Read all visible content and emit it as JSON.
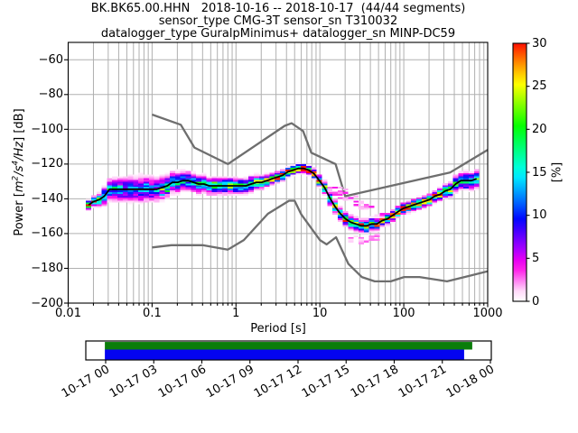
{
  "title": {
    "line1": "BK.BK65.00.HHN   2018-10-16 -- 2018-10-17  (44/44 segments)",
    "line2": "sensor_type CMG-3T sensor_sn T310032",
    "line3": "datalogger_type GuralpMinimus+ datalogger_sn MINP-DC59"
  },
  "axes": {
    "xlabel": "Period [s]",
    "ylabel_prefix": "Power [",
    "ylabel_math_m": "m",
    "ylabel_sup2": "2",
    "ylabel_math_s": "/s",
    "ylabel_sup4": "4",
    "ylabel_math_hz": "/Hz",
    "ylabel_suffix": "] [dB]",
    "x_ticks": [
      "0.01",
      "0.1",
      "1",
      "10",
      "100",
      "1000"
    ],
    "y_ticks": [
      "−60",
      "−80",
      "−100",
      "−120",
      "−140",
      "−160",
      "−180",
      "−200"
    ]
  },
  "colorbar": {
    "label": "[%]",
    "ticks": [
      "0",
      "5",
      "10",
      "15",
      "20",
      "25",
      "30"
    ],
    "min": 0,
    "max": 30,
    "stops": [
      [
        0.0,
        "#ffffff"
      ],
      [
        0.04,
        "#ffd9f9"
      ],
      [
        0.08,
        "#ff80f2"
      ],
      [
        0.12,
        "#ff26e9"
      ],
      [
        0.16,
        "#e600f2"
      ],
      [
        0.2,
        "#aa00ff"
      ],
      [
        0.24,
        "#7300ff"
      ],
      [
        0.28,
        "#3a00ff"
      ],
      [
        0.32,
        "#0008ff"
      ],
      [
        0.36,
        "#0044ff"
      ],
      [
        0.4,
        "#007eff"
      ],
      [
        0.44,
        "#00b4ff"
      ],
      [
        0.48,
        "#00e8ff"
      ],
      [
        0.52,
        "#00ffd9"
      ],
      [
        0.56,
        "#00ffa4"
      ],
      [
        0.6,
        "#00ff6e"
      ],
      [
        0.64,
        "#00ff39"
      ],
      [
        0.68,
        "#06ff00"
      ],
      [
        0.72,
        "#44ff00"
      ],
      [
        0.76,
        "#80ff00"
      ],
      [
        0.8,
        "#bfff00"
      ],
      [
        0.84,
        "#fdff00"
      ],
      [
        0.88,
        "#ffcc00"
      ],
      [
        0.92,
        "#ff9100"
      ],
      [
        0.96,
        "#ff5100"
      ],
      [
        1.0,
        "#ff0e00"
      ]
    ]
  },
  "colors": {
    "grid": "#b0b0b0",
    "frame": "#000000",
    "noise_model": "#6e6e6e",
    "mode_line": "#000000",
    "timeline_green": "#0a7d0a",
    "timeline_blue": "#0404f0"
  },
  "chart_data": {
    "type": "heatmap",
    "title": "BK.BK65.00.HHN 2018-10-16 -- 2018-10-17 (44/44 segments)",
    "xlabel": "Period [s]",
    "ylabel": "Power [m2/s4/Hz] [dB]",
    "xscale": "log",
    "xlim": [
      0.01,
      1000
    ],
    "ylim": [
      -200,
      -50
    ],
    "grid": true,
    "value_unit": "%",
    "value_range": [
      0,
      30
    ],
    "histogram": {
      "bins_per_decade": 16,
      "db_bin_width": 1,
      "period_start": 0.0175,
      "period_end": 820
    },
    "noise_model_nhnm": [
      [
        0.1,
        -91.5
      ],
      [
        0.22,
        -97.4
      ],
      [
        0.32,
        -110.5
      ],
      [
        0.8,
        -120.0
      ],
      [
        3.8,
        -98.0
      ],
      [
        4.6,
        -96.5
      ],
      [
        6.3,
        -101.0
      ],
      [
        7.9,
        -113.5
      ],
      [
        15.4,
        -120.0
      ],
      [
        20.0,
        -138.5
      ],
      [
        354.8,
        -124.9
      ],
      [
        1000,
        -111.8
      ]
    ],
    "noise_model_nlnm": [
      [
        0.1,
        -168.0
      ],
      [
        0.17,
        -166.7
      ],
      [
        0.4,
        -166.7
      ],
      [
        0.8,
        -169.2
      ],
      [
        1.24,
        -163.7
      ],
      [
        2.4,
        -148.6
      ],
      [
        4.3,
        -141.1
      ],
      [
        5.0,
        -141.1
      ],
      [
        6.0,
        -149.0
      ],
      [
        10.0,
        -163.7
      ],
      [
        12.0,
        -166.2
      ],
      [
        15.6,
        -162.1
      ],
      [
        21.9,
        -177.5
      ],
      [
        31.6,
        -185.0
      ],
      [
        45.0,
        -187.5
      ],
      [
        70.0,
        -187.5
      ],
      [
        101.0,
        -185.0
      ],
      [
        154.0,
        -185.0
      ],
      [
        328.0,
        -187.5
      ],
      [
        600.0,
        -184.4
      ],
      [
        1000,
        -181.7
      ]
    ],
    "mode_line": [
      [
        0.017,
        -143.5
      ],
      [
        0.019,
        -142.5
      ],
      [
        0.021,
        -141.5
      ],
      [
        0.024,
        -140.5
      ],
      [
        0.027,
        -138.5
      ],
      [
        0.03,
        -135.2
      ],
      [
        0.034,
        -134.2
      ],
      [
        0.04,
        -134.5
      ],
      [
        0.048,
        -134.4
      ],
      [
        0.057,
        -134.9
      ],
      [
        0.068,
        -134.7
      ],
      [
        0.08,
        -134.9
      ],
      [
        0.095,
        -134.6
      ],
      [
        0.113,
        -134.1
      ],
      [
        0.135,
        -133.0
      ],
      [
        0.16,
        -131.6
      ],
      [
        0.19,
        -130.4
      ],
      [
        0.225,
        -129.8
      ],
      [
        0.267,
        -129.7
      ],
      [
        0.317,
        -130.6
      ],
      [
        0.376,
        -131.5
      ],
      [
        0.447,
        -132.0
      ],
      [
        0.53,
        -132.2
      ],
      [
        0.63,
        -132.4
      ],
      [
        0.748,
        -132.6
      ],
      [
        0.888,
        -132.5
      ],
      [
        1.054,
        -132.3
      ],
      [
        1.251,
        -132.5
      ],
      [
        1.485,
        -131.9
      ],
      [
        1.763,
        -130.9
      ],
      [
        2.093,
        -129.9
      ],
      [
        2.484,
        -128.9
      ],
      [
        2.949,
        -127.9
      ],
      [
        3.501,
        -126.3
      ],
      [
        4.156,
        -124.6
      ],
      [
        4.933,
        -123.1
      ],
      [
        5.856,
        -122.3
      ],
      [
        6.951,
        -122.3
      ],
      [
        8.251,
        -124.6
      ],
      [
        9.795,
        -129.0
      ],
      [
        11.63,
        -134.5
      ],
      [
        13.8,
        -141.0
      ],
      [
        16.38,
        -146.5
      ],
      [
        19.45,
        -150.5
      ],
      [
        23.09,
        -153.0
      ],
      [
        27.41,
        -154.6
      ],
      [
        32.54,
        -155.3
      ],
      [
        38.62,
        -155.3
      ],
      [
        45.85,
        -154.5
      ],
      [
        54.42,
        -153.0
      ],
      [
        64.6,
        -151.0
      ],
      [
        76.68,
        -148.9
      ],
      [
        91.03,
        -146.8
      ],
      [
        108.1,
        -144.8
      ],
      [
        128.3,
        -143.5
      ],
      [
        152.3,
        -142.3
      ],
      [
        180.8,
        -141.0
      ],
      [
        214.6,
        -139.9
      ],
      [
        254.7,
        -138.0
      ],
      [
        302.4,
        -135.5
      ],
      [
        359.0,
        -134.8
      ],
      [
        426.1,
        -130.5
      ],
      [
        505.8,
        -129.4
      ],
      [
        600.4,
        -129.2
      ],
      [
        712.7,
        -128.8
      ],
      [
        820.0,
        -128.9
      ]
    ],
    "spread_sigma_db": [
      [
        0.017,
        1.1
      ],
      [
        0.022,
        1.3
      ],
      [
        0.03,
        3.0
      ],
      [
        0.05,
        3.4
      ],
      [
        0.1,
        3.4
      ],
      [
        0.15,
        3.0
      ],
      [
        0.2,
        2.7
      ],
      [
        0.3,
        2.5
      ],
      [
        0.5,
        2.3
      ],
      [
        0.8,
        2.1
      ],
      [
        1.5,
        2.0
      ],
      [
        2.5,
        1.5
      ],
      [
        4.0,
        1.2
      ],
      [
        6.0,
        1.1
      ],
      [
        8.0,
        1.2
      ],
      [
        10.0,
        1.5
      ],
      [
        14.0,
        1.7
      ],
      [
        20.0,
        1.7
      ],
      [
        30.0,
        1.7
      ],
      [
        50.0,
        1.5
      ],
      [
        80.0,
        1.4
      ],
      [
        150.0,
        1.4
      ],
      [
        250.0,
        1.5
      ],
      [
        350.0,
        1.8
      ],
      [
        420.0,
        2.3
      ],
      [
        600.0,
        2.3
      ],
      [
        820.0,
        2.4
      ]
    ],
    "secondary_branch": [
      [
        13.0,
        -133.5
      ],
      [
        16.0,
        -136.0
      ],
      [
        20.0,
        -138.5
      ],
      [
        26.0,
        -141.5
      ],
      [
        33.0,
        -144.0
      ],
      [
        42.0,
        -146.5
      ],
      [
        52.0,
        -148.5
      ],
      [
        62.0,
        -150.5
      ]
    ]
  },
  "timeline": {
    "tick_labels": [
      "10-17 00",
      "10-17 03",
      "10-17 06",
      "10-17 09",
      "10-17 12",
      "10-17 15",
      "10-17 18",
      "10-17 21",
      "10-18 00"
    ],
    "bars": {
      "green": {
        "x0": 0.047,
        "x1": 0.953,
        "y0": 0.05,
        "y1": 0.452
      },
      "blue": {
        "x0": 0.047,
        "x1": 0.933,
        "y0": 0.452,
        "y1": 0.976
      }
    }
  }
}
